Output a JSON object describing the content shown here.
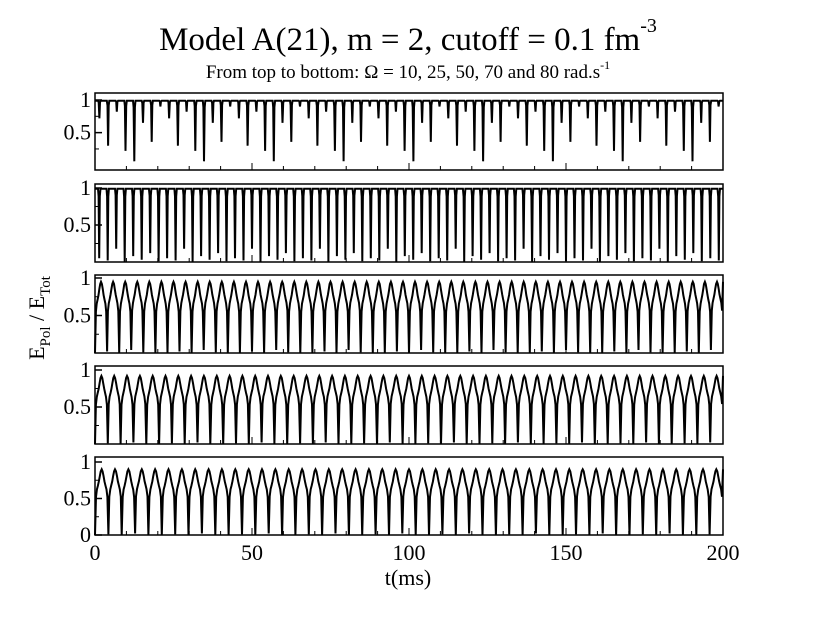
{
  "chart_data": {
    "type": "line",
    "title": "Model A(21), m = 2, cutoff = 0.1 fm",
    "title_superscript": "-3",
    "subtitle": "From top to bottom: Ω = 10, 25, 50, 70 and 80 rad.s",
    "subtitle_superscript": "-1",
    "xlabel": "t(ms)",
    "ylabel": {
      "E": "E",
      "sub_pol": "Pol",
      "slash": " / ",
      "sub_tot": "Tot"
    },
    "xlim": [
      0,
      200
    ],
    "x_ticks": [
      "0",
      "50",
      "100",
      "150",
      "200"
    ],
    "grid": false,
    "panels": [
      {
        "ylim": [
          0.05,
          1.0
        ],
        "y_ticks": [
          "1",
          "0.5"
        ],
        "y_tick_values": [
          1.0,
          0.5
        ],
        "dips": 72,
        "peak_value": 0.99,
        "dip_depth_pattern": [
          0.72,
          0.3,
          0.82,
          0.22,
          0.06,
          0.65,
          0.36,
          0.9
        ]
      },
      {
        "ylim": [
          0.0,
          1.0
        ],
        "y_ticks": [
          "1",
          "0.5"
        ],
        "y_tick_values": [
          1.0,
          0.5
        ],
        "dips": 74,
        "peak_value": 0.99,
        "dip_depth_pattern": [
          0.05,
          0.02,
          0.18,
          0.0,
          0.08,
          0.03,
          0.12,
          0.01
        ]
      },
      {
        "ylim": [
          0.0,
          1.0
        ],
        "y_ticks": [
          "1",
          "0.5"
        ],
        "y_tick_values": [
          1.0,
          0.5
        ],
        "dips": 52,
        "peak_value": 0.95,
        "dip_depth_pattern": [
          0.0,
          0.02,
          0.0,
          0.04,
          0.01,
          0.0
        ]
      },
      {
        "ylim": [
          0.0,
          1.0
        ],
        "y_ticks": [
          "1",
          "0.5"
        ],
        "y_tick_values": [
          1.0,
          0.5
        ],
        "dips": 49,
        "peak_value": 0.92,
        "dip_depth_pattern": [
          0.0,
          0.01,
          0.0,
          0.02,
          0.0
        ]
      },
      {
        "ylim": [
          0.0,
          1.0
        ],
        "y_ticks": [
          "1",
          "0.5",
          "0"
        ],
        "y_tick_values": [
          1.0,
          0.5,
          0.0
        ],
        "dips": 47,
        "peak_value": 0.9,
        "dip_depth_pattern": [
          0.0,
          0.01,
          0.0,
          0.02,
          0.0
        ]
      }
    ]
  }
}
